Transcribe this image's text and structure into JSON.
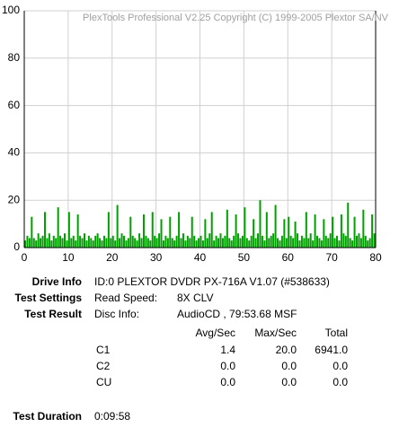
{
  "chart_data": {
    "type": "bar",
    "annotation": "PlexTools Professional V2.25 Copyright (C) 1999-2005 Plextor SA/NV",
    "color": "#00a000",
    "grid": true,
    "xlim": [
      0,
      80
    ],
    "xticks": [
      0,
      10,
      20,
      30,
      40,
      50,
      60,
      70,
      80
    ],
    "ylim": [
      0,
      100
    ],
    "yticks": [
      0,
      20,
      40,
      60,
      80,
      100
    ],
    "x": [
      0,
      0.5,
      1,
      1.5,
      2,
      2.5,
      3,
      3.5,
      4,
      4.5,
      5,
      5.5,
      6,
      6.5,
      7,
      7.5,
      8,
      8.5,
      9,
      9.5,
      10,
      10.5,
      11,
      11.5,
      12,
      12.5,
      13,
      13.5,
      14,
      14.5,
      15,
      15.5,
      16,
      16.5,
      17,
      17.5,
      18,
      18.5,
      19,
      19.5,
      20,
      20.5,
      21,
      21.5,
      22,
      22.5,
      23,
      23.5,
      24,
      24.5,
      25,
      25.5,
      26,
      26.5,
      27,
      27.5,
      28,
      28.5,
      29,
      29.5,
      30,
      30.5,
      31,
      31.5,
      32,
      32.5,
      33,
      33.5,
      34,
      34.5,
      35,
      35.5,
      36,
      36.5,
      37,
      37.5,
      38,
      38.5,
      39,
      39.5,
      40,
      40.5,
      41,
      41.5,
      42,
      42.5,
      43,
      43.5,
      44,
      44.5,
      45,
      45.5,
      46,
      46.5,
      47,
      47.5,
      48,
      48.5,
      49,
      49.5,
      50,
      50.5,
      51,
      51.5,
      52,
      52.5,
      53,
      53.5,
      54,
      54.5,
      55,
      55.5,
      56,
      56.5,
      57,
      57.5,
      58,
      58.5,
      59,
      59.5,
      60,
      60.5,
      61,
      61.5,
      62,
      62.5,
      63,
      63.5,
      64,
      64.5,
      65,
      65.5,
      66,
      66.5,
      67,
      67.5,
      68,
      68.5,
      69,
      69.5,
      70,
      70.5,
      71,
      71.5,
      72,
      72.5,
      73,
      73.5,
      74,
      74.5,
      75,
      75.5,
      76,
      76.5,
      77,
      77.5,
      78,
      78.5,
      79,
      79.5
    ],
    "values": [
      3,
      5,
      4,
      13,
      4,
      3,
      6,
      4,
      5,
      15,
      4,
      6,
      3,
      5,
      4,
      17,
      5,
      4,
      6,
      3,
      15,
      4,
      5,
      3,
      14,
      5,
      4,
      6,
      3,
      5,
      4,
      3,
      5,
      6,
      4,
      3,
      5,
      4,
      15,
      4,
      5,
      3,
      18,
      4,
      6,
      5,
      3,
      4,
      13,
      5,
      4,
      3,
      6,
      4,
      14,
      5,
      4,
      3,
      15,
      5,
      4,
      6,
      12,
      3,
      5,
      4,
      13,
      4,
      3,
      5,
      15,
      4,
      6,
      3,
      5,
      4,
      13,
      5,
      3,
      4,
      5,
      3,
      12,
      4,
      6,
      15,
      3,
      5,
      4,
      6,
      4,
      5,
      16,
      4,
      3,
      5,
      14,
      6,
      4,
      5,
      17,
      4,
      3,
      5,
      12,
      4,
      6,
      20,
      5,
      3,
      15,
      4,
      5,
      6,
      18,
      4,
      3,
      5,
      12,
      4,
      13,
      5,
      4,
      11,
      6,
      3,
      5,
      4,
      15,
      4,
      6,
      3,
      14,
      5,
      4,
      3,
      12,
      5,
      4,
      6,
      13,
      4,
      5,
      3,
      14,
      6,
      5,
      19,
      4,
      3,
      13,
      5,
      6,
      4,
      16,
      5,
      3,
      4,
      14,
      6
    ]
  },
  "info": {
    "drive_info": {
      "label": "Drive Info",
      "value": "ID:0 PLEXTOR DVDR PX-716A V1.07 (#538633)"
    },
    "test_settings": {
      "label": "Test Settings",
      "key": "Read Speed:",
      "value": "8X CLV"
    },
    "test_result": {
      "label": "Test Result",
      "key": "Disc Info:",
      "value": "AudioCD , 79:53.68 MSF"
    },
    "table": {
      "columns": [
        "Avg/Sec",
        "Max/Sec",
        "Total"
      ],
      "rows": [
        [
          "C1",
          "1.4",
          "20.0",
          "6941.0"
        ],
        [
          "C2",
          "0.0",
          "0.0",
          "0.0"
        ],
        [
          "CU",
          "0.0",
          "0.0",
          "0.0"
        ]
      ]
    },
    "test_duration": {
      "label": "Test Duration",
      "value": "0:09:58"
    }
  }
}
